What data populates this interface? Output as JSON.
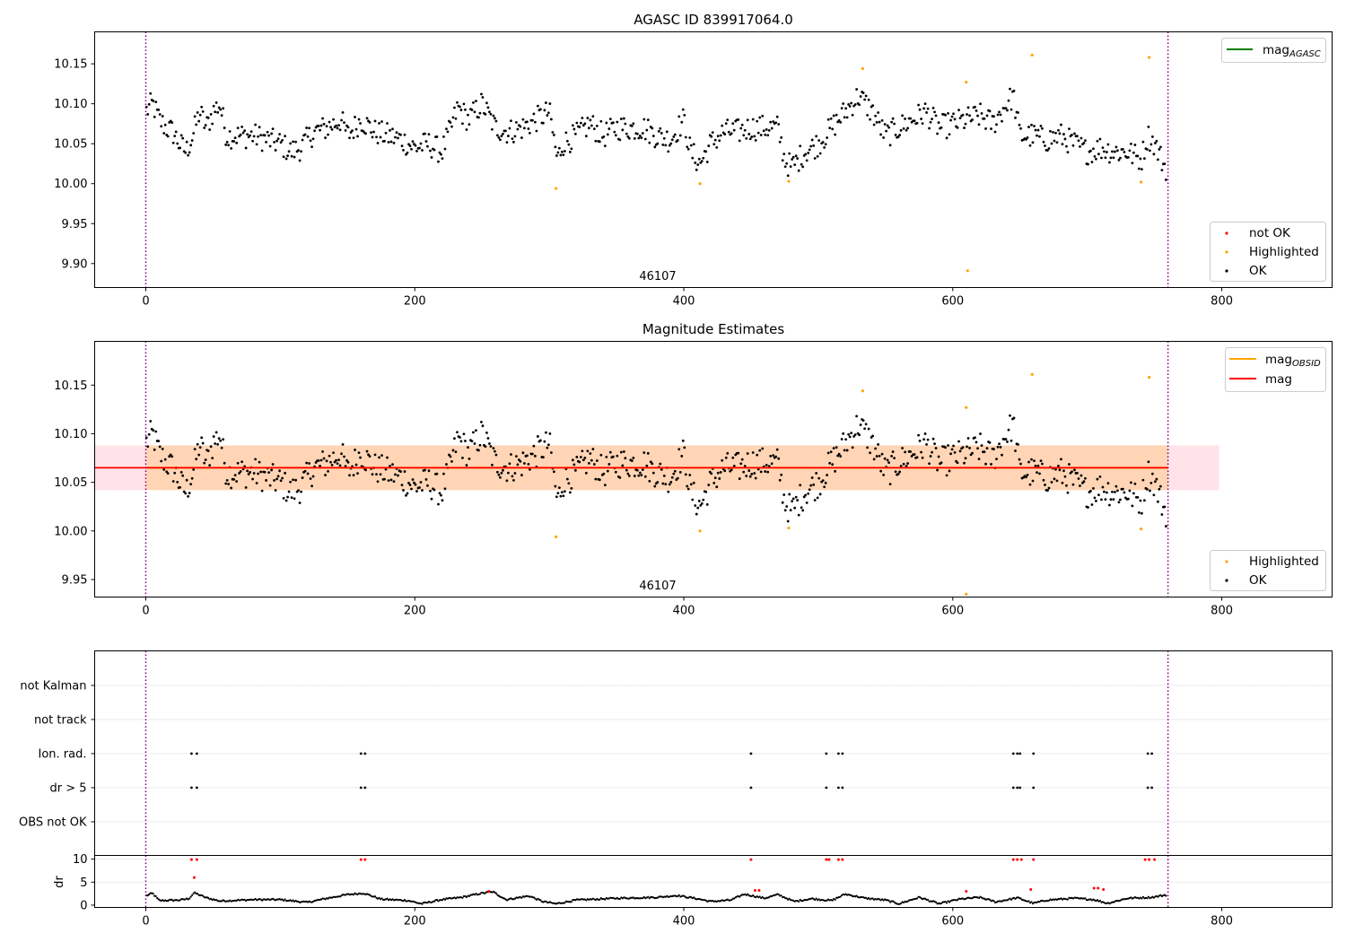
{
  "chart_data": [
    {
      "id": "agasc",
      "type": "scatter",
      "title": "AGASC ID 839917064.0",
      "xlim": [
        -38,
        882
      ],
      "ylim": [
        9.87,
        10.19
      ],
      "x_ticks": [
        0,
        200,
        400,
        600,
        800
      ],
      "y_ticks": [
        9.9,
        9.95,
        10.0,
        10.05,
        10.1,
        10.15
      ],
      "y_tick_labels": [
        "9.90",
        "9.95",
        "10.00",
        "10.05",
        "10.10",
        "10.15"
      ],
      "obsid_boundaries": [
        0,
        760
      ],
      "obsid_label": {
        "text": "46107",
        "x": 380
      },
      "legend_lines": [
        {
          "label": "mag",
          "sub": "AGASC",
          "color": "#008000"
        }
      ],
      "legend_points": [
        {
          "label": "not OK",
          "color": "#ff0000"
        },
        {
          "label": "Highlighted",
          "color": "#ffa500"
        },
        {
          "label": "OK",
          "color": "#000000"
        }
      ],
      "highlighted_points": [
        [
          305,
          9.994
        ],
        [
          412,
          10.0
        ],
        [
          478,
          10.003
        ],
        [
          533,
          10.144
        ],
        [
          610,
          10.127
        ],
        [
          611,
          9.891
        ],
        [
          659,
          10.161
        ],
        [
          740,
          10.002
        ],
        [
          746,
          10.158
        ]
      ],
      "ok_trend": [
        [
          0,
          10.09
        ],
        [
          5,
          10.1
        ],
        [
          10,
          10.08
        ],
        [
          15,
          10.07
        ],
        [
          20,
          10.065
        ],
        [
          25,
          10.05
        ],
        [
          30,
          10.04
        ],
        [
          35,
          10.06
        ],
        [
          40,
          10.09
        ],
        [
          45,
          10.07
        ],
        [
          50,
          10.09
        ],
        [
          55,
          10.1
        ],
        [
          60,
          10.06
        ],
        [
          70,
          10.06
        ],
        [
          80,
          10.06
        ],
        [
          90,
          10.055
        ],
        [
          100,
          10.05
        ],
        [
          108,
          10.04
        ],
        [
          115,
          10.045
        ],
        [
          125,
          10.065
        ],
        [
          135,
          10.07
        ],
        [
          145,
          10.08
        ],
        [
          150,
          10.06
        ],
        [
          160,
          10.08
        ],
        [
          170,
          10.065
        ],
        [
          180,
          10.06
        ],
        [
          190,
          10.055
        ],
        [
          200,
          10.045
        ],
        [
          210,
          10.05
        ],
        [
          220,
          10.04
        ],
        [
          225,
          10.06
        ],
        [
          232,
          10.095
        ],
        [
          240,
          10.08
        ],
        [
          250,
          10.1
        ],
        [
          260,
          10.07
        ],
        [
          270,
          10.065
        ],
        [
          280,
          10.07
        ],
        [
          290,
          10.08
        ],
        [
          300,
          10.09
        ],
        [
          306,
          10.03
        ],
        [
          310,
          10.05
        ],
        [
          320,
          10.06
        ],
        [
          330,
          10.075
        ],
        [
          340,
          10.06
        ],
        [
          350,
          10.07
        ],
        [
          360,
          10.07
        ],
        [
          370,
          10.07
        ],
        [
          380,
          10.06
        ],
        [
          390,
          10.055
        ],
        [
          400,
          10.08
        ],
        [
          405,
          10.04
        ],
        [
          412,
          10.025
        ],
        [
          420,
          10.05
        ],
        [
          430,
          10.065
        ],
        [
          440,
          10.065
        ],
        [
          450,
          10.07
        ],
        [
          460,
          10.07
        ],
        [
          470,
          10.07
        ],
        [
          475,
          10.03
        ],
        [
          480,
          10.02
        ],
        [
          490,
          10.04
        ],
        [
          500,
          10.05
        ],
        [
          510,
          10.07
        ],
        [
          520,
          10.09
        ],
        [
          530,
          10.11
        ],
        [
          540,
          10.09
        ],
        [
          550,
          10.06
        ],
        [
          560,
          10.07
        ],
        [
          570,
          10.08
        ],
        [
          580,
          10.09
        ],
        [
          590,
          10.07
        ],
        [
          600,
          10.075
        ],
        [
          610,
          10.08
        ],
        [
          620,
          10.085
        ],
        [
          630,
          10.075
        ],
        [
          640,
          10.1
        ],
        [
          645,
          10.11
        ],
        [
          650,
          10.06
        ],
        [
          660,
          10.06
        ],
        [
          670,
          10.055
        ],
        [
          680,
          10.06
        ],
        [
          690,
          10.05
        ],
        [
          700,
          10.04
        ],
        [
          710,
          10.045
        ],
        [
          720,
          10.04
        ],
        [
          730,
          10.04
        ],
        [
          740,
          10.03
        ],
        [
          745,
          10.06
        ],
        [
          750,
          10.05
        ],
        [
          758,
          10.02
        ]
      ]
    },
    {
      "id": "estimates",
      "type": "scatter",
      "title": "Magnitude Estimates",
      "xlim": [
        -38,
        882
      ],
      "ylim": [
        9.932,
        10.195
      ],
      "x_ticks": [
        0,
        200,
        400,
        600,
        800
      ],
      "y_ticks": [
        9.95,
        10.0,
        10.05,
        10.1,
        10.15
      ],
      "y_tick_labels": [
        "9.95",
        "10.00",
        "10.05",
        "10.10",
        "10.15"
      ],
      "obsid_boundaries": [
        0,
        760
      ],
      "obsid_label": {
        "text": "46107",
        "x": 380
      },
      "mag_line": {
        "value": 10.065,
        "x": [
          -38,
          760
        ],
        "color": "#ff0000"
      },
      "mag_obsid_line": {
        "value": 10.065,
        "x": [
          0,
          760
        ],
        "color": "#ffa500"
      },
      "mag_band": {
        "y": [
          10.042,
          10.088
        ],
        "x": [
          -38,
          798
        ],
        "color": "#ffc0cb"
      },
      "mag_obsid_band": {
        "y": [
          10.042,
          10.088
        ],
        "x": [
          0,
          760
        ],
        "color": "#ffa500"
      },
      "legend_lines": [
        {
          "label": "mag",
          "sub": "OBSID",
          "color": "#ffa500"
        },
        {
          "label": "mag",
          "sub": "",
          "color": "#ff0000"
        }
      ],
      "legend_points": [
        {
          "label": "Highlighted",
          "color": "#ffa500"
        },
        {
          "label": "OK",
          "color": "#000000"
        }
      ],
      "highlighted_points": [
        [
          305,
          9.994
        ],
        [
          412,
          10.0
        ],
        [
          478,
          10.003
        ],
        [
          533,
          10.144
        ],
        [
          610,
          10.127
        ],
        [
          610,
          9.935
        ],
        [
          659,
          10.161
        ],
        [
          740,
          10.002
        ],
        [
          746,
          10.158
        ]
      ]
    },
    {
      "id": "flags",
      "type": "scatter",
      "xlim": [
        -38,
        882
      ],
      "categories": [
        "not Kalman",
        "not track",
        "Ion. rad.",
        "dr > 5",
        "OBS not OK"
      ],
      "obsid_boundaries": [
        0,
        760
      ],
      "flag_points": {
        "Ion. rad.": [
          34,
          38,
          160,
          163,
          450,
          506,
          515,
          518,
          645,
          648,
          650,
          660,
          745,
          748
        ],
        "dr > 5": [
          34,
          38,
          160,
          163,
          450,
          506,
          515,
          518,
          645,
          648,
          650,
          660,
          745,
          748
        ]
      }
    },
    {
      "id": "dr",
      "type": "scatter",
      "ylabel": "dr",
      "xlim": [
        -38,
        882
      ],
      "ylim": [
        -0.5,
        10.8
      ],
      "x_ticks": [
        0,
        200,
        400,
        600,
        800
      ],
      "y_ticks": [
        0,
        5,
        10
      ],
      "y_tick_labels": [
        "0",
        "5",
        "10"
      ],
      "obsid_boundaries": [
        0,
        760
      ],
      "red_points": [
        [
          34,
          9.9
        ],
        [
          38,
          9.9
        ],
        [
          36,
          6
        ],
        [
          160,
          9.9
        ],
        [
          163,
          9.9
        ],
        [
          255,
          3
        ],
        [
          450,
          9.9
        ],
        [
          453,
          3.2
        ],
        [
          456,
          3.2
        ],
        [
          506,
          9.9
        ],
        [
          508,
          9.9
        ],
        [
          515,
          9.9
        ],
        [
          518,
          9.9
        ],
        [
          610,
          3
        ],
        [
          645,
          9.9
        ],
        [
          648,
          9.9
        ],
        [
          651,
          9.9
        ],
        [
          660,
          9.9
        ],
        [
          658,
          3.4
        ],
        [
          705,
          3.7
        ],
        [
          708,
          3.7
        ],
        [
          712,
          3.4
        ],
        [
          743,
          9.9
        ],
        [
          746,
          9.9
        ],
        [
          750,
          9.9
        ]
      ],
      "ok_trend": [
        [
          0,
          2.0
        ],
        [
          5,
          2.6
        ],
        [
          10,
          1.0
        ],
        [
          25,
          1.1
        ],
        [
          32,
          1.4
        ],
        [
          36,
          2.7
        ],
        [
          45,
          1.6
        ],
        [
          55,
          0.9
        ],
        [
          80,
          1.2
        ],
        [
          100,
          1.2
        ],
        [
          120,
          0.6
        ],
        [
          135,
          1.5
        ],
        [
          150,
          2.3
        ],
        [
          162,
          2.6
        ],
        [
          175,
          1.3
        ],
        [
          195,
          1.0
        ],
        [
          205,
          0.3
        ],
        [
          220,
          1.2
        ],
        [
          235,
          1.7
        ],
        [
          250,
          2.6
        ],
        [
          258,
          2.9
        ],
        [
          268,
          1.2
        ],
        [
          285,
          2.0
        ],
        [
          295,
          0.8
        ],
        [
          305,
          0.3
        ],
        [
          320,
          1.1
        ],
        [
          350,
          1.5
        ],
        [
          380,
          1.7
        ],
        [
          395,
          2.1
        ],
        [
          410,
          1.4
        ],
        [
          420,
          0.8
        ],
        [
          435,
          1.1
        ],
        [
          445,
          2.4
        ],
        [
          460,
          1.5
        ],
        [
          470,
          2.3
        ],
        [
          482,
          0.8
        ],
        [
          495,
          1.4
        ],
        [
          510,
          1.0
        ],
        [
          520,
          2.4
        ],
        [
          535,
          1.5
        ],
        [
          550,
          1.1
        ],
        [
          560,
          0.3
        ],
        [
          575,
          1.7
        ],
        [
          590,
          0.3
        ],
        [
          605,
          1.3
        ],
        [
          620,
          1.7
        ],
        [
          632,
          0.7
        ],
        [
          648,
          1.6
        ],
        [
          660,
          0.4
        ],
        [
          670,
          1.1
        ],
        [
          690,
          1.5
        ],
        [
          705,
          1.2
        ],
        [
          715,
          0.4
        ],
        [
          730,
          1.5
        ],
        [
          748,
          1.7
        ],
        [
          758,
          2.2
        ]
      ]
    }
  ]
}
